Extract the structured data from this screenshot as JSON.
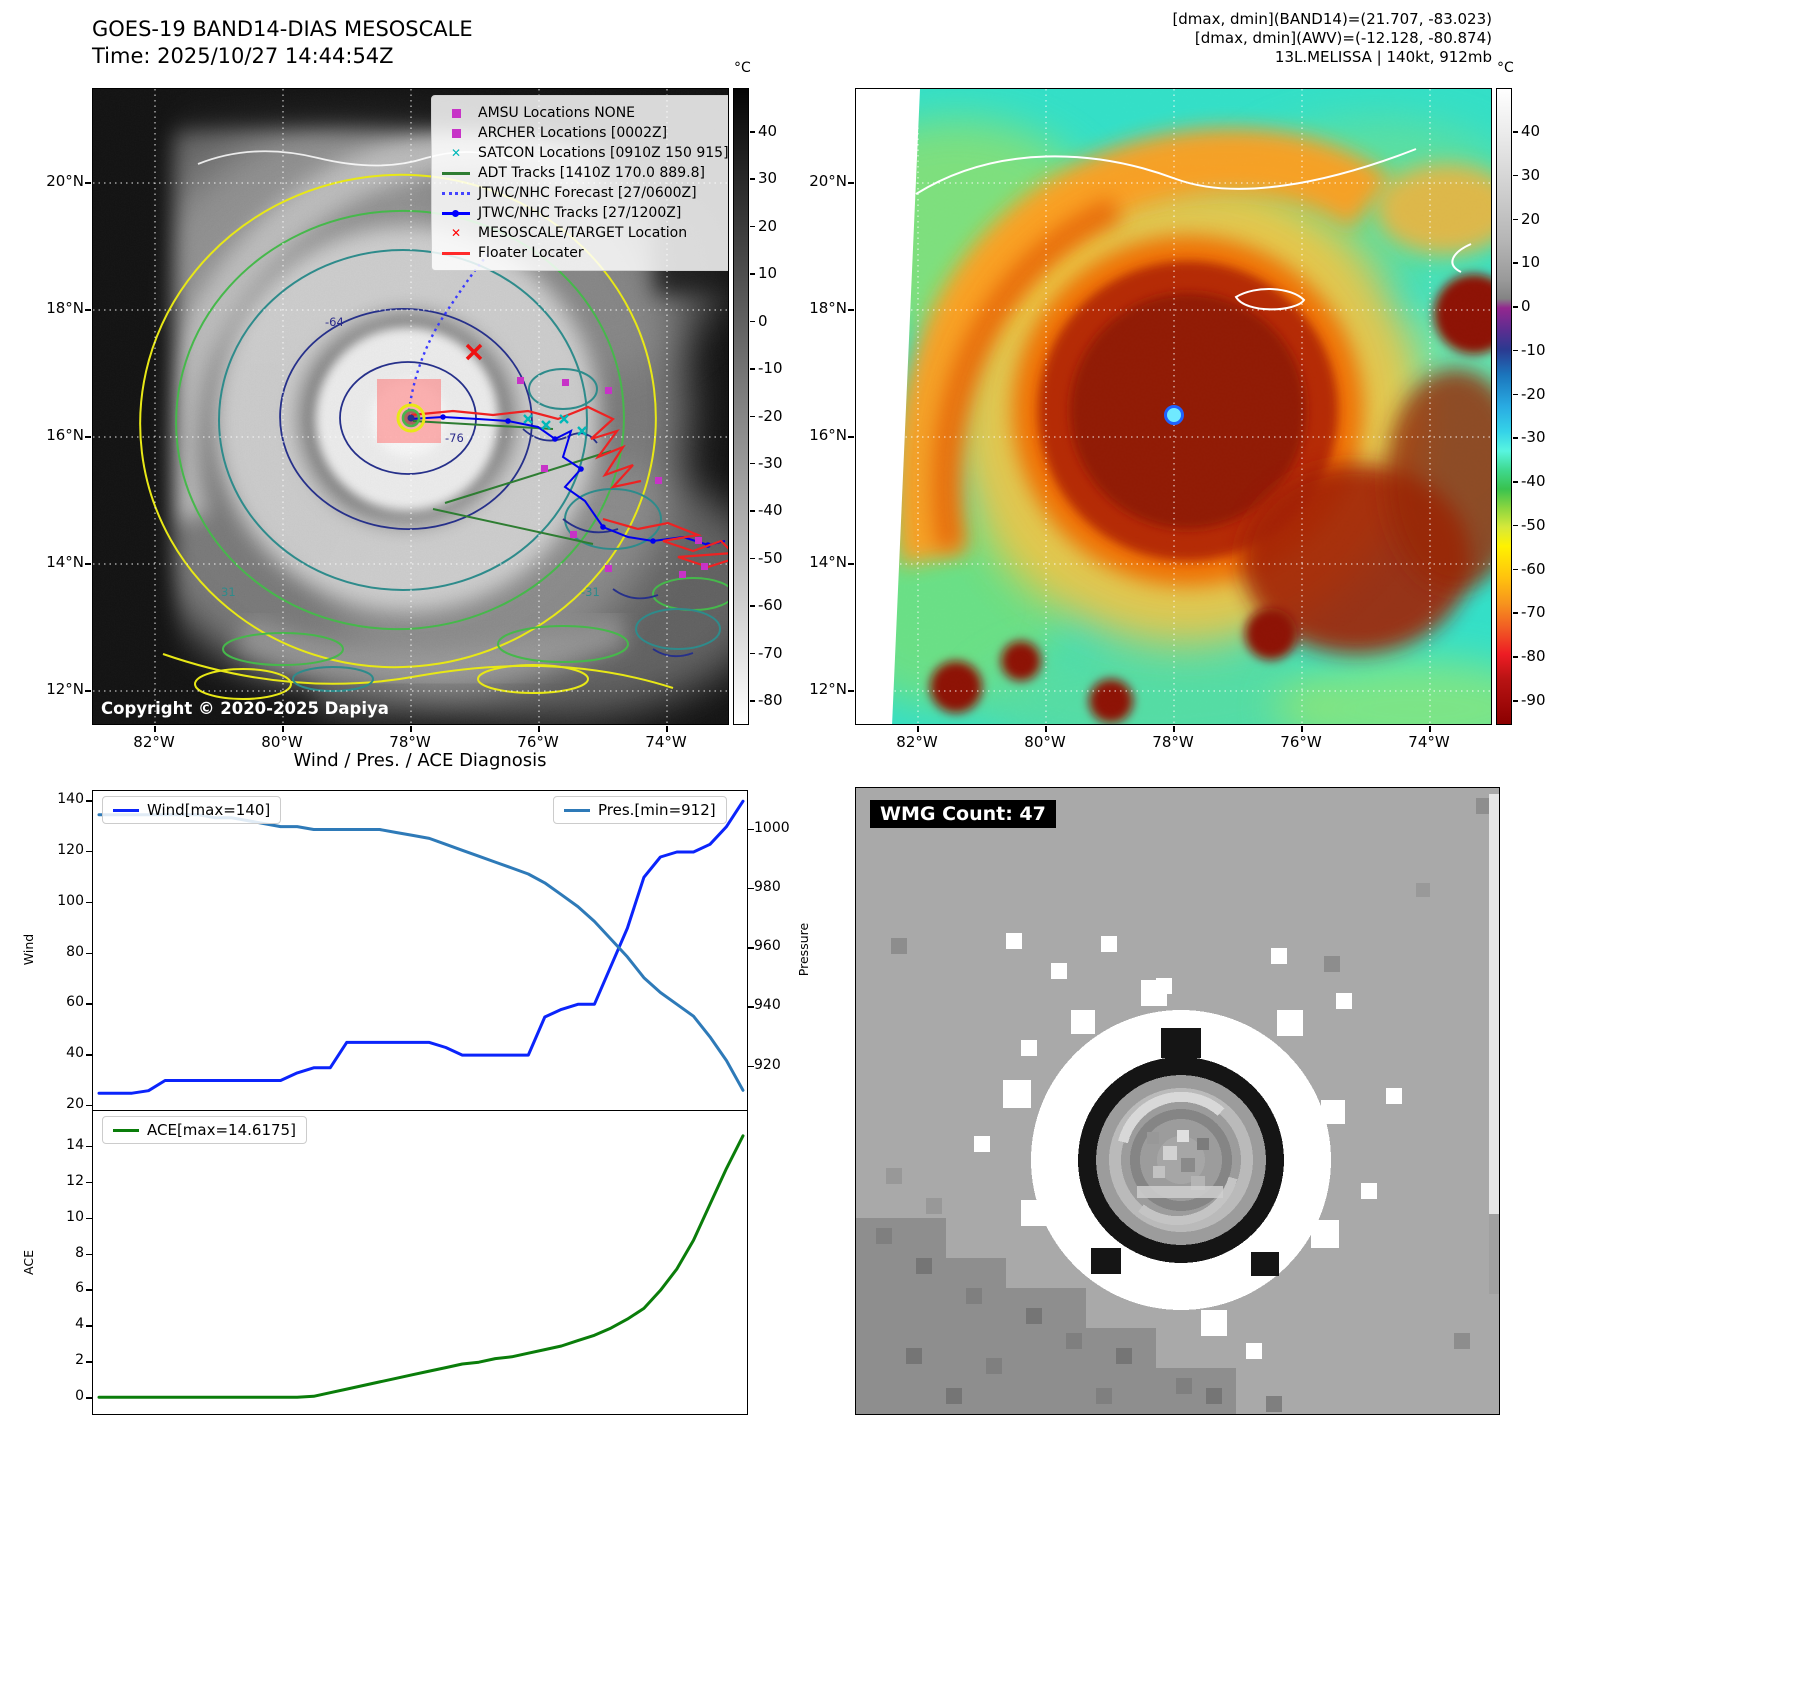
{
  "page": {
    "p1": {
      "title": "GOES-19 BAND14-DIAS MESOSCALE",
      "time": "Time: 2025/10/27 14:44:54Z",
      "copyright": "Copyright © 2020-2025 Dapiya",
      "colorbar_unit": "°C",
      "colorbar_ticks": [
        "40",
        "30",
        "20",
        "10",
        "0",
        "-10",
        "-20",
        "-30",
        "-40",
        "-50",
        "-60",
        "-70",
        "-80"
      ],
      "lat_ticks": [
        "20°N",
        "18°N",
        "16°N",
        "14°N",
        "12°N"
      ],
      "lon_ticks": [
        "82°W",
        "80°W",
        "78°W",
        "76°W",
        "74°W"
      ],
      "contour_labels": [
        "-64",
        "-76",
        "31",
        "-31"
      ],
      "legend": [
        {
          "label": "AMSU Locations NONE",
          "marker": "square",
          "color": "#c733c7"
        },
        {
          "label": "ARCHER Locations [0002Z]",
          "marker": "square",
          "color": "#c733c7"
        },
        {
          "label": "SATCON Locations [0910Z 150 915]",
          "marker": "x",
          "color": "#00b8b8"
        },
        {
          "label": "ADT Tracks [1410Z 170.0 889.8]",
          "marker": "line",
          "color": "#2e7d32"
        },
        {
          "label": "JTWC/NHC Forecast [27/0600Z]",
          "marker": "dotted",
          "color": "#4444ff"
        },
        {
          "label": "JTWC/NHC Tracks [27/1200Z]",
          "marker": "line-dot",
          "color": "#0000ff"
        },
        {
          "label": "MESOSCALE/TARGET Location",
          "marker": "x",
          "color": "#ff0000"
        },
        {
          "label": "Floater Locater",
          "marker": "line",
          "color": "#ff2a2a"
        }
      ]
    },
    "p2": {
      "hdr1": "[dmax, dmin](BAND14)=(21.707, -83.023)",
      "hdr2": "[dmax, dmin](AWV)=(-12.128, -80.874)",
      "hdr3": "13L.MELISSA | 140kt, 912mb",
      "colorbar_unit": "°C",
      "colorbar_ticks": [
        "40",
        "30",
        "20",
        "10",
        "0",
        "-10",
        "-20",
        "-30",
        "-40",
        "-50",
        "-60",
        "-70",
        "-80",
        "-90"
      ],
      "lat_ticks": [
        "20°N",
        "18°N",
        "16°N",
        "14°N",
        "12°N"
      ],
      "lon_ticks": [
        "82°W",
        "80°W",
        "78°W",
        "76°W",
        "74°W"
      ]
    },
    "p3": {
      "title": "Wind / Pres. / ACE Diagnosis",
      "wind_legend": "Wind[max=140]",
      "pres_legend": "Pres.[min=912]",
      "ace_legend": "ACE[max=14.6175]",
      "wind_ylabel": "Wind",
      "pres_ylabel": "Pressure",
      "ace_ylabel": "ACE"
    },
    "p4": {
      "label": "WMG Count: 47"
    }
  },
  "chart_data": [
    {
      "type": "line",
      "title": "Wind / Pres. / ACE Diagnosis",
      "xlabel": "",
      "legend_position": "top-left / top-right",
      "series": [
        {
          "name": "Wind[max=140]",
          "ylabel": "Wind",
          "axis": "left",
          "color": "#0b24fb",
          "ylim": [
            18,
            144
          ],
          "ticks": [
            20,
            40,
            60,
            80,
            100,
            120,
            140
          ],
          "values": [
            25,
            25,
            25,
            26,
            30,
            30,
            30,
            30,
            30,
            30,
            30,
            30,
            33,
            35,
            35,
            45,
            45,
            45,
            45,
            45,
            45,
            43,
            40,
            40,
            40,
            40,
            40,
            55,
            58,
            60,
            60,
            75,
            90,
            110,
            118,
            120,
            120,
            123,
            130,
            140
          ]
        },
        {
          "name": "Pres.[min=912]",
          "ylabel": "Pressure",
          "axis": "right",
          "color": "#2e7ab8",
          "ylim": [
            905,
            1013
          ],
          "ticks": [
            920,
            940,
            960,
            980,
            1000
          ],
          "values": [
            1005,
            1005,
            1005,
            1005,
            1005,
            1005,
            1005,
            1004,
            1004,
            1003,
            1002,
            1001,
            1001,
            1000,
            1000,
            1000,
            1000,
            1000,
            999,
            998,
            997,
            995,
            993,
            991,
            989,
            987,
            985,
            982,
            978,
            974,
            969,
            963,
            957,
            950,
            945,
            941,
            937,
            930,
            922,
            912
          ]
        }
      ]
    },
    {
      "type": "line",
      "title": "ACE",
      "xlabel": "",
      "legend_position": "top-left",
      "series": [
        {
          "name": "ACE[max=14.6175]",
          "ylabel": "ACE",
          "axis": "left",
          "color": "#0a7d0a",
          "ylim": [
            -1,
            16
          ],
          "ticks": [
            0,
            2,
            4,
            6,
            8,
            10,
            12,
            14
          ],
          "values": [
            0.05,
            0.05,
            0.05,
            0.05,
            0.05,
            0.05,
            0.05,
            0.05,
            0.05,
            0.05,
            0.05,
            0.05,
            0.05,
            0.1,
            0.3,
            0.5,
            0.7,
            0.9,
            1.1,
            1.3,
            1.5,
            1.7,
            1.9,
            2.0,
            2.2,
            2.3,
            2.5,
            2.7,
            2.9,
            3.2,
            3.5,
            3.9,
            4.4,
            5.0,
            6.0,
            7.2,
            8.8,
            10.8,
            12.8,
            14.6175
          ]
        }
      ]
    }
  ]
}
